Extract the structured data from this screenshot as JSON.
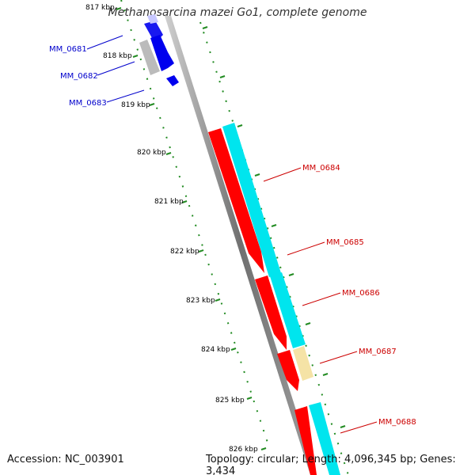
{
  "header": {
    "title": "Methanosarcina mazei Go1, complete genome"
  },
  "footer": {
    "accession": "Accession: NC_003901",
    "summary": "Topology: circular; Length: 4,096,345 bp; Genes: 3,434"
  },
  "ticks": [
    {
      "label": "817 kbp"
    },
    {
      "label": "818 kbp"
    },
    {
      "label": "819 kbp"
    },
    {
      "label": "820 kbp"
    },
    {
      "label": "821 kbp"
    },
    {
      "label": "822 kbp"
    },
    {
      "label": "823 kbp"
    },
    {
      "label": "824 kbp"
    },
    {
      "label": "825 kbp"
    },
    {
      "label": "826 kbp"
    }
  ],
  "genes": [
    {
      "label": "MM_0681",
      "color": "#0000cc"
    },
    {
      "label": "MM_0682",
      "color": "#0000cc"
    },
    {
      "label": "MM_0683",
      "color": "#0000cc"
    },
    {
      "label": "MM_0684",
      "color": "#cc0000"
    },
    {
      "label": "MM_0685",
      "color": "#cc0000"
    },
    {
      "label": "MM_0686",
      "color": "#cc0000"
    },
    {
      "label": "MM_0687",
      "color": "#cc0000"
    },
    {
      "label": "MM_0688",
      "color": "#cc0000"
    }
  ],
  "colors": {
    "forward_cds": "#0000ee",
    "reverse_cds": "#ff0000",
    "cyan_feature": "#00e5ee",
    "yellow_feature": "#f5e3a6",
    "gray_feature": "#bbbbbb",
    "backbone": "#808080",
    "tick": "#228b22"
  }
}
